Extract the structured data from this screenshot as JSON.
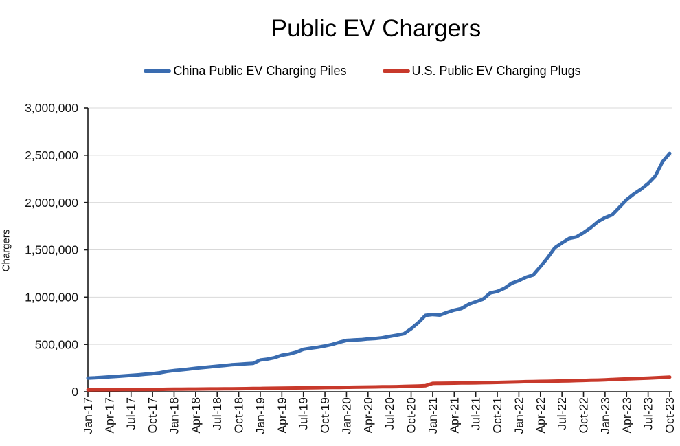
{
  "title": "Public EV Chargers",
  "chart_data": {
    "type": "line",
    "title": "Public EV Chargers",
    "xlabel": "",
    "ylabel": "Chargers",
    "ylim": [
      0,
      3000000
    ],
    "ytick_interval": 500000,
    "ytick_labels": [
      "0",
      "500,000",
      "1,000,000",
      "1,500,000",
      "2,000,000",
      "2,500,000",
      "3,000,000"
    ],
    "x_unit": "month",
    "x_range": [
      "Jan-17",
      "Oct-23"
    ],
    "points_per_tick": 3,
    "xtick_labels": [
      "Jan-17",
      "Apr-17",
      "Jul-17",
      "Oct-17",
      "Jan-18",
      "Apr-18",
      "Jul-18",
      "Oct-18",
      "Jan-19",
      "Apr-19",
      "Jul-19",
      "Oct-19",
      "Jan-20",
      "Apr-20",
      "Jul-20",
      "Oct-20",
      "Jan-21",
      "Apr-21",
      "Jul-21",
      "Oct-21",
      "Jan-22",
      "Apr-22",
      "Jul-22",
      "Oct-22",
      "Jan-23",
      "Apr-23",
      "Jul-23",
      "Oct-23"
    ],
    "grid": "horizontal",
    "legend_position": "top",
    "series": [
      {
        "name": "China Public EV Charging Piles",
        "color": "#3A6CB0",
        "values": [
          144000,
          147000,
          152000,
          157000,
          162000,
          167000,
          172000,
          178000,
          185000,
          191000,
          200000,
          214000,
          224000,
          230000,
          239000,
          248000,
          255000,
          262000,
          270000,
          277000,
          285000,
          290000,
          295000,
          300000,
          335000,
          344000,
          360000,
          386000,
          398000,
          418000,
          448000,
          460000,
          470000,
          484000,
          500000,
          522000,
          542000,
          546000,
          550000,
          558000,
          562000,
          570000,
          585000,
          598000,
          612000,
          666000,
          730000,
          807000,
          816000,
          810000,
          838000,
          862000,
          880000,
          923000,
          951000,
          978000,
          1044000,
          1060000,
          1094000,
          1147000,
          1174000,
          1210000,
          1234000,
          1323000,
          1415000,
          1521000,
          1573000,
          1620000,
          1636000,
          1680000,
          1733000,
          1797000,
          1840000,
          1870000,
          1950000,
          2030000,
          2090000,
          2140000,
          2200000,
          2280000,
          2430000,
          2520000
        ]
      },
      {
        "name": "U.S. Public EV Charging Plugs",
        "color": "#C8392B",
        "values": [
          20000,
          21000,
          21000,
          22000,
          22000,
          23000,
          23000,
          24000,
          24000,
          25000,
          25000,
          26000,
          27000,
          27000,
          28000,
          28000,
          29000,
          30000,
          30000,
          31000,
          31000,
          32000,
          33000,
          34000,
          35000,
          36000,
          37000,
          38000,
          39000,
          40000,
          41000,
          42000,
          43000,
          44000,
          45000,
          46000,
          47000,
          48000,
          49000,
          50000,
          51000,
          52000,
          53000,
          54000,
          56000,
          58000,
          60000,
          63000,
          88000,
          89000,
          90000,
          91000,
          92000,
          93000,
          94000,
          95000,
          96000,
          98000,
          100000,
          102000,
          104000,
          106000,
          107000,
          109000,
          110000,
          112000,
          113000,
          115000,
          117000,
          119000,
          121000,
          123000,
          126000,
          129000,
          132000,
          135000,
          138000,
          141000,
          144000,
          147000,
          151000,
          155000
        ]
      }
    ],
    "colors": {
      "grid": "#d9d9d9",
      "axis": "#1a1a1a",
      "text": "#000000"
    }
  }
}
